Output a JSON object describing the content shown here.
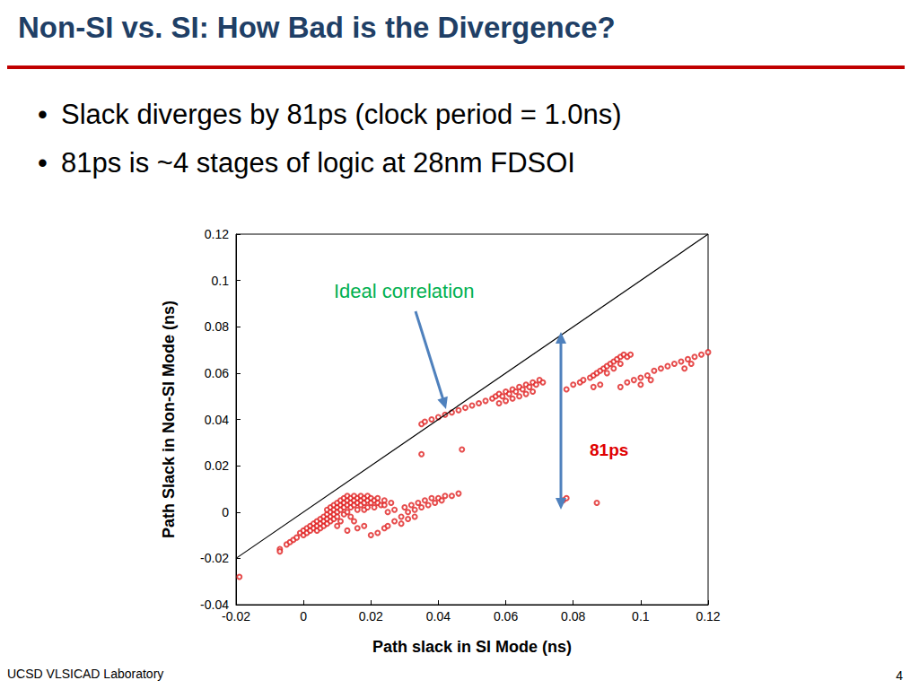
{
  "slide": {
    "title": "Non-SI vs. SI: How Bad is the Divergence?",
    "bullets": [
      "Slack diverges by 81ps (clock period = 1.0ns)",
      "81ps is ~4 stages of logic at 28nm FDSOI"
    ],
    "footer": "UCSD VLSICAD Laboratory",
    "page": "4"
  },
  "chart_data": {
    "type": "scatter",
    "x_label": "Path slack in SI Mode (ns)",
    "y_label": "Path Slack in Non-SI Mode (ns)",
    "xlim": [
      -0.02,
      0.12
    ],
    "xticks": [
      -0.02,
      0,
      0.02,
      0.04,
      0.06,
      0.08,
      0.1,
      0.12
    ],
    "ylim": [
      -0.04,
      0.12
    ],
    "yticks": [
      -0.04,
      -0.02,
      0,
      0.02,
      0.04,
      0.06,
      0.08,
      0.1,
      0.12
    ],
    "grid": false,
    "annotations": [
      {
        "text": "Ideal correlation",
        "color": "#00b050"
      },
      {
        "text": "81ps",
        "color": "#e00000"
      }
    ],
    "series": [
      {
        "type": "scatter",
        "color": "#e02020",
        "marker": "circle-open",
        "values": [
          [
            -0.019,
            -0.028
          ],
          [
            -0.007,
            -0.016
          ],
          [
            -0.007,
            -0.017
          ],
          [
            -0.005,
            -0.014
          ],
          [
            -0.004,
            -0.013
          ],
          [
            -0.003,
            -0.012
          ],
          [
            -0.002,
            -0.011
          ],
          [
            -0.001,
            -0.009
          ],
          [
            0,
            -0.01
          ],
          [
            0,
            -0.008
          ],
          [
            0.001,
            -0.007
          ],
          [
            0.001,
            -0.009
          ],
          [
            0.002,
            -0.006
          ],
          [
            0.002,
            -0.008
          ],
          [
            0.003,
            -0.005
          ],
          [
            0.003,
            -0.007
          ],
          [
            0.004,
            -0.004
          ],
          [
            0.004,
            -0.006
          ],
          [
            0.004,
            -0.008
          ],
          [
            0.005,
            -0.003
          ],
          [
            0.005,
            -0.005
          ],
          [
            0.005,
            -0.007
          ],
          [
            0.006,
            -0.002
          ],
          [
            0.006,
            -0.004
          ],
          [
            0.006,
            -0.006
          ],
          [
            0.007,
            -0.001
          ],
          [
            0.007,
            -0.003
          ],
          [
            0.007,
            -0.005
          ],
          [
            0.007,
            0.001
          ],
          [
            0.008,
            0
          ],
          [
            0.008,
            -0.002
          ],
          [
            0.008,
            -0.004
          ],
          [
            0.008,
            0.002
          ],
          [
            0.009,
            0.001
          ],
          [
            0.009,
            -0.001
          ],
          [
            0.009,
            0.003
          ],
          [
            0.009,
            -0.003
          ],
          [
            0.01,
            0.002
          ],
          [
            0.01,
            0
          ],
          [
            0.01,
            0.004
          ],
          [
            0.01,
            -0.002
          ],
          [
            0.011,
            0.003
          ],
          [
            0.011,
            0.005
          ],
          [
            0.011,
            0.001
          ],
          [
            0.011,
            -0.004
          ],
          [
            0.012,
            0.004
          ],
          [
            0.012,
            0.006
          ],
          [
            0.012,
            0.002
          ],
          [
            0.012,
            -0.001
          ],
          [
            0.013,
            0.005
          ],
          [
            0.013,
            0.007
          ],
          [
            0.013,
            0.003
          ],
          [
            0.013,
            0
          ],
          [
            0.014,
            0.006
          ],
          [
            0.014,
            0.004
          ],
          [
            0.014,
            0.002
          ],
          [
            0.014,
            -0.002
          ],
          [
            0.015,
            0.005
          ],
          [
            0.015,
            0.007
          ],
          [
            0.015,
            0.003
          ],
          [
            0.015,
            -0.004
          ],
          [
            0.016,
            0.006
          ],
          [
            0.016,
            0.004
          ],
          [
            0.016,
            0.001
          ],
          [
            0.017,
            0.005
          ],
          [
            0.017,
            0.007
          ],
          [
            0.017,
            0.003
          ],
          [
            0.018,
            0.006
          ],
          [
            0.018,
            0.004
          ],
          [
            0.018,
            0.001
          ],
          [
            0.019,
            0.005
          ],
          [
            0.019,
            0.007
          ],
          [
            0.019,
            0.002
          ],
          [
            0.02,
            0.006
          ],
          [
            0.02,
            0.004
          ],
          [
            0.021,
            0.005
          ],
          [
            0.021,
            0.002
          ],
          [
            0.022,
            0.004
          ],
          [
            0.022,
            0.006
          ],
          [
            0.023,
            0.003
          ],
          [
            0.024,
            0.005
          ],
          [
            0.01,
            -0.006
          ],
          [
            0.013,
            -0.008
          ],
          [
            0.016,
            -0.007
          ],
          [
            0.018,
            -0.006
          ],
          [
            0.02,
            -0.01
          ],
          [
            0.022,
            -0.009
          ],
          [
            0.024,
            -0.007
          ],
          [
            0.025,
            -0.006
          ],
          [
            0.025,
            0
          ],
          [
            0.027,
            0.001
          ],
          [
            0.029,
            -0.002
          ],
          [
            0.03,
            0.002
          ],
          [
            0.031,
            0
          ],
          [
            0.032,
            0.003
          ],
          [
            0.033,
            0.001
          ],
          [
            0.034,
            0.004
          ],
          [
            0.035,
            0.002
          ],
          [
            0.036,
            0.005
          ],
          [
            0.037,
            0.003
          ],
          [
            0.038,
            0.006
          ],
          [
            0.039,
            0.004
          ],
          [
            0.04,
            0.006
          ],
          [
            0.041,
            0.005
          ],
          [
            0.042,
            0.007
          ],
          [
            0.044,
            0.007
          ],
          [
            0.046,
            0.008
          ],
          [
            0.027,
            -0.004
          ],
          [
            0.029,
            -0.005
          ],
          [
            0.031,
            -0.003
          ],
          [
            0.033,
            -0.002
          ],
          [
            0.024,
            0.003
          ],
          [
            0.026,
            0.004
          ],
          [
            0.035,
            0.025
          ],
          [
            0.047,
            0.027
          ],
          [
            0.035,
            0.038
          ],
          [
            0.036,
            0.039
          ],
          [
            0.038,
            0.04
          ],
          [
            0.04,
            0.041
          ],
          [
            0.042,
            0.042
          ],
          [
            0.044,
            0.043
          ],
          [
            0.046,
            0.044
          ],
          [
            0.048,
            0.045
          ],
          [
            0.05,
            0.046
          ],
          [
            0.052,
            0.047
          ],
          [
            0.054,
            0.048
          ],
          [
            0.056,
            0.049
          ],
          [
            0.057,
            0.05
          ],
          [
            0.058,
            0.051
          ],
          [
            0.059,
            0.05
          ],
          [
            0.06,
            0.052
          ],
          [
            0.061,
            0.051
          ],
          [
            0.062,
            0.053
          ],
          [
            0.063,
            0.052
          ],
          [
            0.064,
            0.054
          ],
          [
            0.065,
            0.053
          ],
          [
            0.066,
            0.055
          ],
          [
            0.067,
            0.054
          ],
          [
            0.068,
            0.056
          ],
          [
            0.069,
            0.055
          ],
          [
            0.07,
            0.057
          ],
          [
            0.071,
            0.056
          ],
          [
            0.062,
            0.049
          ],
          [
            0.064,
            0.05
          ],
          [
            0.066,
            0.051
          ],
          [
            0.068,
            0.052
          ],
          [
            0.058,
            0.047
          ],
          [
            0.06,
            0.048
          ],
          [
            0.077,
            0.005
          ],
          [
            0.078,
            0.006
          ],
          [
            0.087,
            0.004
          ],
          [
            0.078,
            0.053
          ],
          [
            0.08,
            0.055
          ],
          [
            0.082,
            0.056
          ],
          [
            0.083,
            0.057
          ],
          [
            0.085,
            0.058
          ],
          [
            0.086,
            0.059
          ],
          [
            0.087,
            0.06
          ],
          [
            0.088,
            0.061
          ],
          [
            0.089,
            0.062
          ],
          [
            0.09,
            0.063
          ],
          [
            0.091,
            0.064
          ],
          [
            0.092,
            0.065
          ],
          [
            0.093,
            0.066
          ],
          [
            0.094,
            0.067
          ],
          [
            0.095,
            0.068
          ],
          [
            0.096,
            0.067
          ],
          [
            0.097,
            0.068
          ],
          [
            0.09,
            0.06
          ],
          [
            0.092,
            0.062
          ],
          [
            0.094,
            0.064
          ],
          [
            0.086,
            0.054
          ],
          [
            0.088,
            0.055
          ],
          [
            0.094,
            0.054
          ],
          [
            0.096,
            0.056
          ],
          [
            0.098,
            0.057
          ],
          [
            0.1,
            0.058
          ],
          [
            0.102,
            0.059
          ],
          [
            0.104,
            0.061
          ],
          [
            0.106,
            0.062
          ],
          [
            0.108,
            0.063
          ],
          [
            0.11,
            0.064
          ],
          [
            0.112,
            0.065
          ],
          [
            0.114,
            0.066
          ],
          [
            0.116,
            0.067
          ],
          [
            0.118,
            0.068
          ],
          [
            0.12,
            0.069
          ],
          [
            0.1,
            0.055
          ],
          [
            0.103,
            0.057
          ],
          [
            0.113,
            0.062
          ],
          [
            0.115,
            0.064
          ]
        ]
      },
      {
        "type": "line",
        "color": "#000000",
        "line_style": "solid",
        "values": [
          [
            -0.02,
            -0.02
          ],
          [
            0.12,
            0.12
          ]
        ]
      }
    ]
  }
}
